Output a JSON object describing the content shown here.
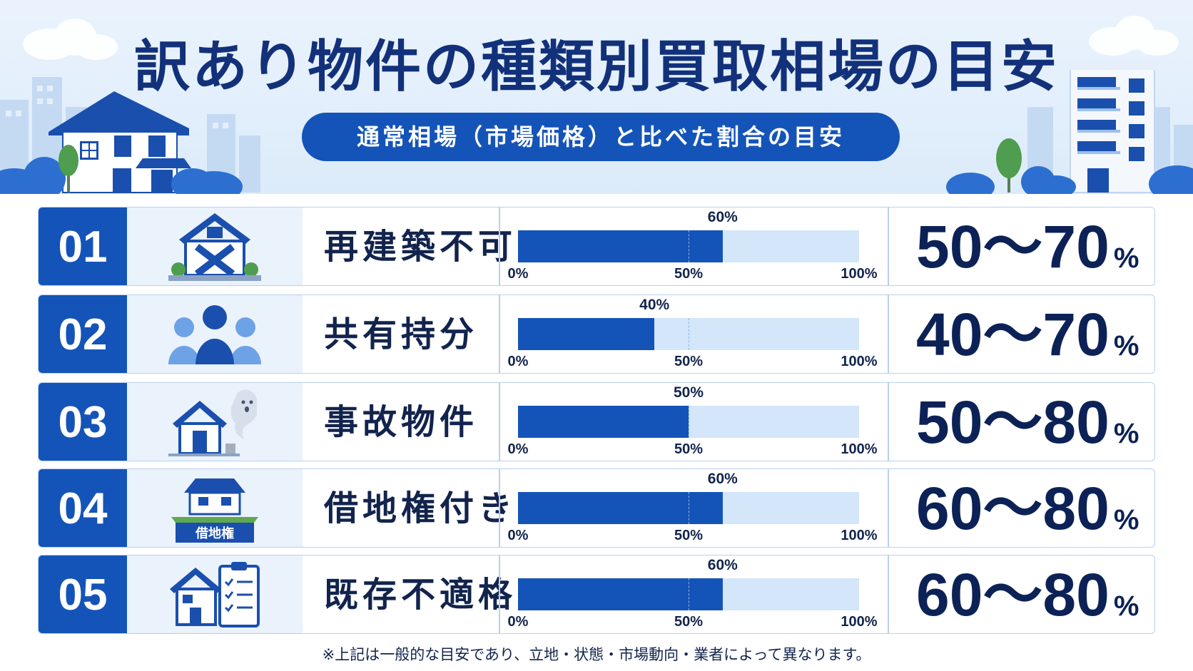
{
  "title": "訳あり物件の種類別買取相場の目安",
  "subtitle": "通常相場（市場価格）と比べた割合の目安",
  "colors": {
    "accent": "#1454b8",
    "navy": "#12317a",
    "track": "#d3e6fa",
    "panel": "#eaf2fc"
  },
  "rows": [
    {
      "number": "01",
      "name": "再建築不可",
      "icon": "house-with-x-icon",
      "bar_value": "60%",
      "range_text": "50〜70",
      "range_unit": "%"
    },
    {
      "number": "02",
      "name": "共有持分",
      "icon": "three-people-icon",
      "bar_value": "40%",
      "range_text": "40〜70",
      "range_unit": "%"
    },
    {
      "number": "03",
      "name": "事故物件",
      "icon": "house-ghost-icon",
      "bar_value": "50%",
      "range_text": "50〜80",
      "range_unit": "%"
    },
    {
      "number": "04",
      "name": "借地権付き",
      "icon": "house-on-land-icon",
      "icon_label": "借地権",
      "bar_value": "60%",
      "range_text": "60〜80",
      "range_unit": "%"
    },
    {
      "number": "05",
      "name": "既存不適格",
      "icon": "house-checklist-icon",
      "bar_value": "60%",
      "range_text": "60〜80",
      "range_unit": "%"
    }
  ],
  "axis_ticks": [
    "0%",
    "50%",
    "100%"
  ],
  "footnote": "※上記は一般的な目安であり、立地・状態・市場動向・業者によって異なります。",
  "chart_data": {
    "type": "bar",
    "orientation": "horizontal",
    "title": "訳あり物件の種類別買取相場の目安",
    "subtitle": "通常相場（市場価格）と比べた割合の目安",
    "categories": [
      "再建築不可",
      "共有持分",
      "事故物件",
      "借地権付き",
      "既存不適格"
    ],
    "values": [
      60,
      40,
      50,
      60,
      60
    ],
    "range_low": [
      50,
      40,
      50,
      60,
      60
    ],
    "range_high": [
      70,
      70,
      80,
      80,
      80
    ],
    "xlim": [
      0,
      100
    ],
    "xticks": [
      "0%",
      "50%",
      "100%"
    ],
    "value_unit": "%"
  }
}
